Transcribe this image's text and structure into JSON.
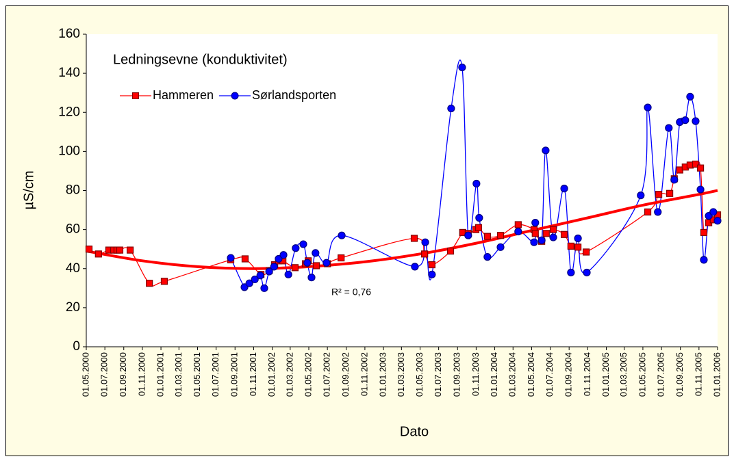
{
  "chart_data": {
    "type": "line",
    "title": "Ledningsevne (konduktivitet)",
    "x_label": "Dato",
    "y_label": "µS/cm",
    "annotation": "R² = 0,76",
    "grid": false,
    "legend": "upper left",
    "smooth": true,
    "xlim": [
      "01.05.2000",
      "01.01.2006"
    ],
    "xticks": [
      "01.05.2000",
      "01.07.2000",
      "01.09.2000",
      "01.11.2000",
      "01.01.2001",
      "01.03.2001",
      "01.05.2001",
      "01.07.2001",
      "01.09.2001",
      "01.11.2001",
      "01.01.2002",
      "01.03.2002",
      "01.05.2002",
      "01.07.2002",
      "01.09.2002",
      "01.11.2002",
      "01.01.2003",
      "01.03.2003",
      "01.05.2003",
      "01.07.2003",
      "01.09.2003",
      "01.11.2003",
      "01.01.2004",
      "01.03.2004",
      "01.05.2004",
      "01.07.2004",
      "01.09.2004",
      "01.11.2004",
      "01.01.2005",
      "01.03.2005",
      "01.05.2005",
      "01.07.2005",
      "01.09.2005",
      "01.11.2005",
      "01.01.2006"
    ],
    "ylim": [
      0,
      160
    ],
    "yticks": [
      0,
      20,
      40,
      60,
      80,
      100,
      120,
      140,
      160
    ],
    "series": [
      {
        "name": "Hammeren",
        "color": "#ff0000",
        "marker_color": "#800000",
        "marker": "square",
        "x": [
          "10.05.2000",
          "10.06.2000",
          "14.07.2000",
          "30.07.2000",
          "10.08.2000",
          "19.08.2000",
          "22.09.2000",
          "24.11.2000",
          "12.01.2001",
          "18.08.2001",
          "04.10.2001",
          "25.11.2001",
          "22.12.2001",
          "09.01.2002",
          "22.01.2002",
          "05.02.2002",
          "17.03.2002",
          "20.04.2002",
          "29.04.2002",
          "26.05.2002",
          "01.07.2002",
          "15.08.2002",
          "12.04.2003",
          "16.05.2003",
          "09.06.2003",
          "09.08.2003",
          "18.09.2003",
          "06.10.2003",
          "31.10.2003",
          "09.11.2003",
          "08.12.2003",
          "20.01.2004",
          "18.03.2004",
          "09.05.2004",
          "13.05.2004",
          "03.06.2004",
          "18.06.2004",
          "11.07.2004",
          "16.08.2004",
          "07.09.2004",
          "30.09.2004",
          "27.10.2004",
          "17.05.2005",
          "22.06.2005",
          "28.07.2005",
          "12.08.2005",
          "30.08.2005",
          "17.09.2005",
          "03.10.2005",
          "21.10.2005",
          "06.11.2005",
          "17.11.2005",
          "03.12.2005",
          "18.12.2005",
          "01.01.2006"
        ],
        "values": [
          50,
          47.5,
          49.5,
          49.5,
          49.5,
          49.5,
          49.5,
          32.5,
          33.5,
          44.5,
          45,
          37,
          39,
          42,
          44,
          44,
          40.5,
          42.5,
          44,
          41.5,
          42.5,
          45.5,
          55.5,
          47.5,
          42,
          49,
          58.5,
          58,
          60,
          61,
          56.5,
          57,
          62.5,
          60,
          58,
          54,
          58,
          60,
          57.5,
          51.5,
          51,
          48.5,
          69,
          78,
          78.5,
          86,
          90.5,
          92,
          93,
          93.5,
          91.5,
          58.5,
          63.5,
          65,
          67.5
        ]
      },
      {
        "name": "Sørlandsporten",
        "color": "#0000ff",
        "marker_color": "#000080",
        "marker": "circle",
        "x": [
          "18.08.2001",
          "02.10.2001",
          "18.10.2001",
          "05.11.2001",
          "23.11.2001",
          "06.12.2001",
          "22.12.2001",
          "07.01.2002",
          "22.01.2002",
          "07.02.2002",
          "23.02.2002",
          "19.03.2002",
          "13.04.2002",
          "26.04.2002",
          "10.05.2002",
          "23.05.2002",
          "28.06.2002",
          "17.08.2002",
          "14.04.2003",
          "18.05.2003",
          "09.06.2003",
          "11.08.2003",
          "16.09.2003",
          "06.10.2003",
          "02.11.2003",
          "11.11.2003",
          "08.12.2003",
          "20.01.2004",
          "18.03.2004",
          "09.05.2004",
          "13.05.2004",
          "03.06.2004",
          "16.06.2004",
          "11.07.2004",
          "16.08.2004",
          "07.09.2004",
          "30.09.2004",
          "29.10.2004",
          "24.04.2005",
          "17.05.2005",
          "19.06.2005",
          "25.07.2005",
          "12.08.2005",
          "30.08.2005",
          "17.09.2005",
          "03.10.2005",
          "21.10.2005",
          "06.11.2005",
          "17.11.2005",
          "03.12.2005",
          "18.12.2005",
          "01.01.2006"
        ],
        "values": [
          45.5,
          30.5,
          32.5,
          34.5,
          36.5,
          30,
          38.5,
          41,
          45,
          47,
          37,
          50.5,
          52.5,
          43,
          35.5,
          48,
          43,
          57,
          41,
          53.5,
          37,
          122,
          143,
          57,
          83.5,
          66,
          46,
          51,
          59,
          53.5,
          63.5,
          54.5,
          100.5,
          56,
          81,
          38,
          55.5,
          38,
          77.5,
          122.5,
          69,
          112,
          85.5,
          115,
          116,
          128,
          115.5,
          80.5,
          44.5,
          67,
          69,
          64.5
        ]
      }
    ],
    "trendline": {
      "color": "#ff0000",
      "x": [
        "01.05.2000",
        "01.11.2000",
        "01.05.2001",
        "01.11.2001",
        "01.05.2002",
        "01.11.2002",
        "01.05.2003",
        "01.11.2003",
        "01.05.2004",
        "01.11.2004",
        "01.05.2005",
        "01.11.2005",
        "01.01.2006"
      ],
      "values": [
        49,
        44,
        41,
        40,
        41,
        43.5,
        47.5,
        53,
        59.5,
        66,
        72.5,
        78,
        80
      ]
    }
  }
}
